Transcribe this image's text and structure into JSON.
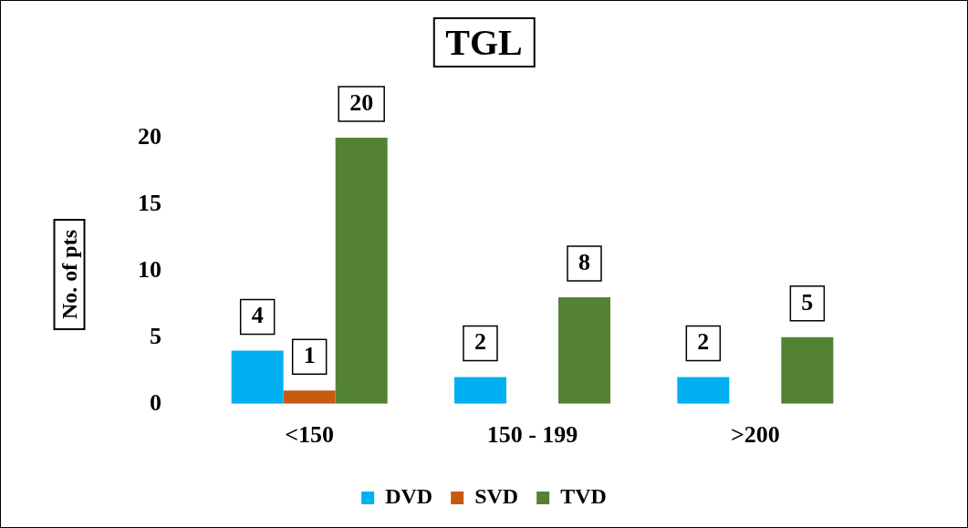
{
  "chart_data": {
    "type": "bar",
    "title": "TGL",
    "ylabel": "No. of pts",
    "categories": [
      "<150",
      "150 - 199",
      ">200"
    ],
    "series": [
      {
        "name": "DVD",
        "color": "#00b0f0",
        "values": [
          4,
          2,
          2
        ]
      },
      {
        "name": "SVD",
        "color": "#c55a11",
        "values": [
          1,
          null,
          null
        ]
      },
      {
        "name": "TVD",
        "color": "#548235",
        "values": [
          20,
          8,
          5
        ]
      }
    ],
    "ylim": [
      0,
      20
    ],
    "yticks": [
      0,
      5,
      10,
      15,
      20
    ],
    "grid": false,
    "legend": "bottom",
    "data_labels": true
  }
}
